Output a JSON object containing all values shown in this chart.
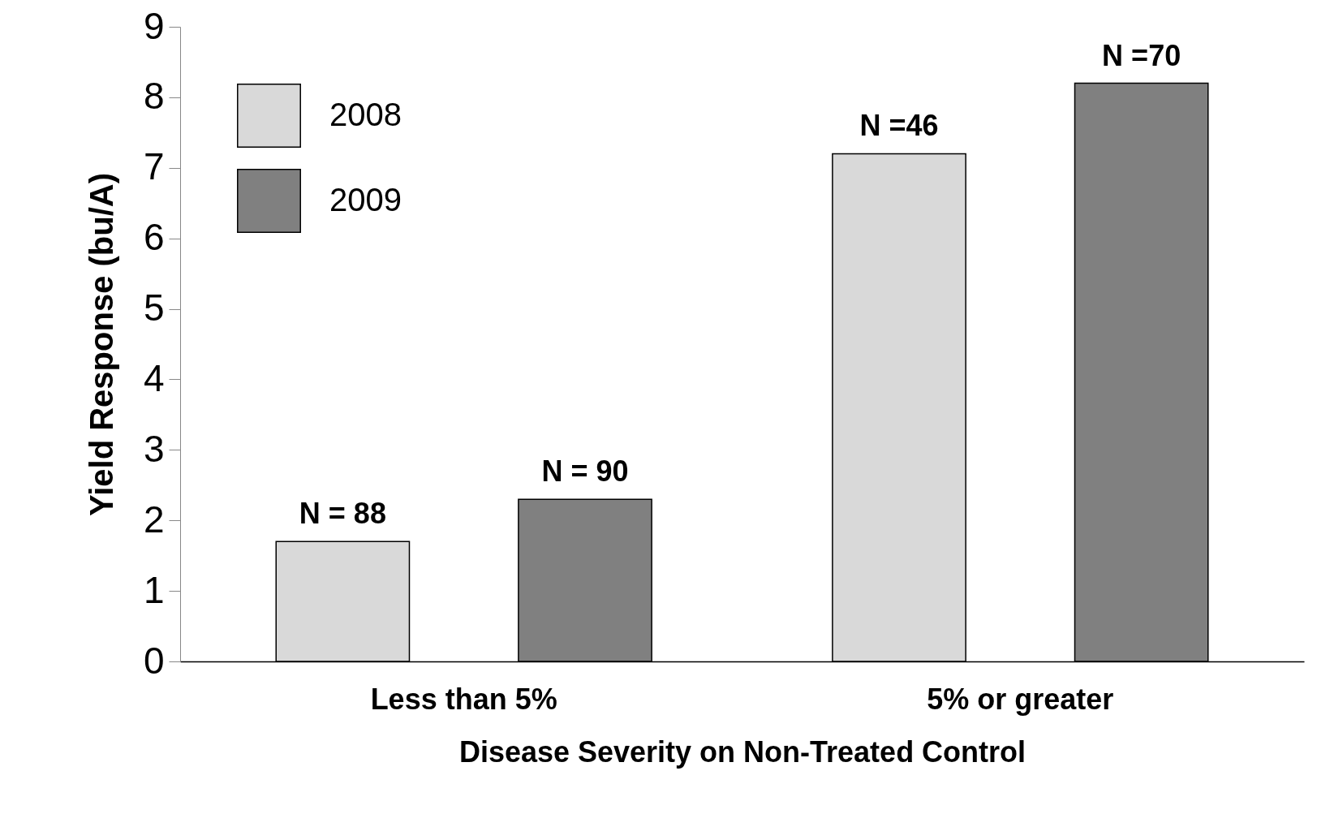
{
  "chart_data": {
    "type": "bar",
    "xlabel": "Disease Severity on Non-Treated Control",
    "ylabel": "Yield Response (bu/A)",
    "categories": [
      "Less than 5%",
      "5% or greater"
    ],
    "series": [
      {
        "name": "2008",
        "color": "#d9d9d9",
        "values": [
          1.7,
          7.2
        ]
      },
      {
        "name": "2009",
        "color": "#808080",
        "values": [
          2.3,
          8.2
        ]
      }
    ],
    "annotations": [
      "N = 88",
      "N = 90",
      "N =46",
      "N =70"
    ],
    "ylim": [
      0,
      9
    ],
    "yticks": [
      0,
      1,
      2,
      3,
      4,
      5,
      6,
      7,
      8,
      9
    ],
    "grid": false,
    "legend": "top left"
  }
}
